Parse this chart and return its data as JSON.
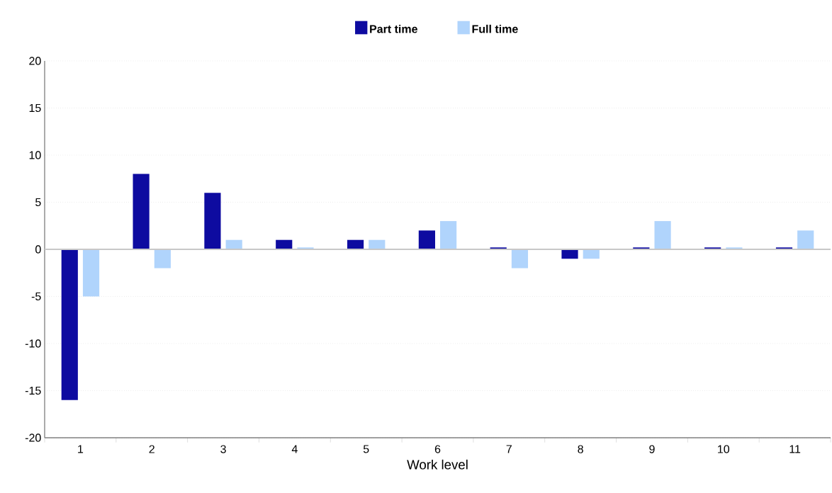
{
  "chart_data": {
    "type": "bar",
    "xlabel": "Work level",
    "categories": [
      "1",
      "2",
      "3",
      "4",
      "5",
      "6",
      "7",
      "8",
      "9",
      "10",
      "11"
    ],
    "series": [
      {
        "name": "Part time",
        "color": "#0e0ba0",
        "values": [
          -16,
          8,
          6,
          1,
          1,
          2,
          0.2,
          -1,
          0.2,
          0.2,
          0.2
        ]
      },
      {
        "name": "Full time",
        "color": "#b0d4fc",
        "values": [
          -5,
          -2,
          1,
          0.2,
          1,
          3,
          -2,
          -1,
          3,
          0.2,
          2
        ]
      }
    ],
    "ylim": [
      -20,
      20
    ],
    "yticks": [
      -20,
      -15,
      -10,
      -5,
      0,
      5,
      10,
      15,
      20
    ],
    "grid": "y",
    "legend": "top",
    "ref_lines": [
      {
        "axis": "y",
        "value": 0,
        "color": "#c8c8c8"
      }
    ]
  }
}
